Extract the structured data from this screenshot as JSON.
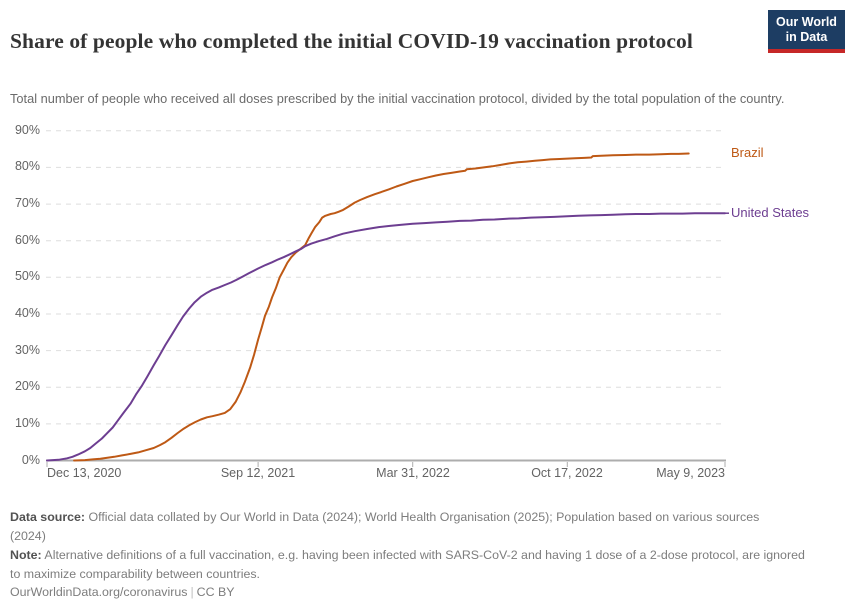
{
  "header": {
    "title": "Share of people who completed the initial COVID-19 vaccination protocol",
    "subtitle": "Total number of people who received all doses prescribed by the initial vaccination protocol, divided by the total population of the country.",
    "logo": {
      "line1": "Our World",
      "line2": "in Data",
      "bg_color": "#1d3d63",
      "accent_color": "#c62828"
    }
  },
  "chart_data": {
    "type": "line",
    "title": "Share of people who completed the initial COVID-19 vaccination protocol",
    "xlabel": "",
    "ylabel": "",
    "grid": "dashed-horizontal",
    "legend_position": "right-of-line-ends",
    "x_axis": {
      "start_date": "2020-12-13",
      "end_date": "2023-05-09",
      "ticks": [
        {
          "label": "Dec 13, 2020",
          "date": "2020-12-13",
          "align": "start"
        },
        {
          "label": "Sep 12, 2021",
          "date": "2021-09-12",
          "align": "center"
        },
        {
          "label": "Mar 31, 2022",
          "date": "2022-03-31",
          "align": "center"
        },
        {
          "label": "Oct 17, 2022",
          "date": "2022-10-17",
          "align": "center"
        },
        {
          "label": "May 9, 2023",
          "date": "2023-05-09",
          "align": "end"
        }
      ]
    },
    "y_axis": {
      "min": 0,
      "max": 90,
      "step": 10,
      "unit": "%"
    },
    "series": [
      {
        "name": "Brazil",
        "color": "#BE5915",
        "points": [
          [
            "2021-01-17",
            0
          ],
          [
            "2021-01-31",
            0.1
          ],
          [
            "2021-02-10",
            0.3
          ],
          [
            "2021-02-20",
            0.5
          ],
          [
            "2021-02-28",
            0.7
          ],
          [
            "2021-03-10",
            1.0
          ],
          [
            "2021-03-20",
            1.4
          ],
          [
            "2021-03-31",
            1.8
          ],
          [
            "2021-04-10",
            2.2
          ],
          [
            "2021-04-20",
            2.8
          ],
          [
            "2021-04-30",
            3.4
          ],
          [
            "2021-05-08",
            4.2
          ],
          [
            "2021-05-15",
            5.0
          ],
          [
            "2021-05-23",
            6.2
          ],
          [
            "2021-05-31",
            7.5
          ],
          [
            "2021-06-08",
            8.7
          ],
          [
            "2021-06-15",
            9.6
          ],
          [
            "2021-06-23",
            10.5
          ],
          [
            "2021-06-30",
            11.2
          ],
          [
            "2021-07-08",
            11.8
          ],
          [
            "2021-07-15",
            12.1
          ],
          [
            "2021-07-23",
            12.5
          ],
          [
            "2021-07-31",
            13.0
          ],
          [
            "2021-08-07",
            14.0
          ],
          [
            "2021-08-14",
            16.0
          ],
          [
            "2021-08-20",
            18.5
          ],
          [
            "2021-08-26",
            21.5
          ],
          [
            "2021-09-02",
            25.5
          ],
          [
            "2021-09-07",
            29.0
          ],
          [
            "2021-09-12",
            33.0
          ],
          [
            "2021-09-17",
            36.5
          ],
          [
            "2021-09-21",
            39.5
          ],
          [
            "2021-09-26",
            42.0
          ],
          [
            "2021-09-30",
            44.5
          ],
          [
            "2021-10-05",
            47.0
          ],
          [
            "2021-10-10",
            50.0
          ],
          [
            "2021-10-15",
            52.0
          ],
          [
            "2021-10-20",
            54.0
          ],
          [
            "2021-10-25",
            55.5
          ],
          [
            "2021-10-31",
            56.8
          ],
          [
            "2021-11-06",
            57.8
          ],
          [
            "2021-11-12",
            58.8
          ],
          [
            "2021-11-16",
            60.5
          ],
          [
            "2021-11-20",
            62.0
          ],
          [
            "2021-11-25",
            63.8
          ],
          [
            "2021-11-30",
            65.0
          ],
          [
            "2021-12-04",
            66.3
          ],
          [
            "2021-12-08",
            66.8
          ],
          [
            "2021-12-15",
            67.3
          ],
          [
            "2021-12-20",
            67.5
          ],
          [
            "2021-12-25",
            67.9
          ],
          [
            "2021-12-31",
            68.4
          ],
          [
            "2022-01-07",
            69.3
          ],
          [
            "2022-01-15",
            70.4
          ],
          [
            "2022-01-22",
            71.1
          ],
          [
            "2022-01-31",
            71.9
          ],
          [
            "2022-02-10",
            72.7
          ],
          [
            "2022-02-20",
            73.4
          ],
          [
            "2022-02-28",
            74.0
          ],
          [
            "2022-03-10",
            74.8
          ],
          [
            "2022-03-20",
            75.5
          ],
          [
            "2022-03-31",
            76.3
          ],
          [
            "2022-04-10",
            76.8
          ],
          [
            "2022-04-20",
            77.3
          ],
          [
            "2022-04-30",
            77.8
          ],
          [
            "2022-05-10",
            78.2
          ],
          [
            "2022-05-20",
            78.5
          ],
          [
            "2022-05-31",
            78.9
          ],
          [
            "2022-06-07",
            79.1
          ],
          [
            "2022-06-09",
            79.5
          ],
          [
            "2022-06-20",
            79.7
          ],
          [
            "2022-07-01",
            80.0
          ],
          [
            "2022-07-12",
            80.3
          ],
          [
            "2022-07-23",
            80.7
          ],
          [
            "2022-08-03",
            81.1
          ],
          [
            "2022-08-14",
            81.4
          ],
          [
            "2022-08-25",
            81.6
          ],
          [
            "2022-09-05",
            81.8
          ],
          [
            "2022-09-15",
            82.0
          ],
          [
            "2022-09-25",
            82.2
          ],
          [
            "2022-10-07",
            82.3
          ],
          [
            "2022-10-17",
            82.4
          ],
          [
            "2022-10-27",
            82.5
          ],
          [
            "2022-11-08",
            82.6
          ],
          [
            "2022-11-17",
            82.7
          ],
          [
            "2022-11-19",
            83.1
          ],
          [
            "2022-11-30",
            83.2
          ],
          [
            "2022-12-15",
            83.3
          ],
          [
            "2022-12-31",
            83.4
          ],
          [
            "2023-01-15",
            83.5
          ],
          [
            "2023-01-31",
            83.5
          ],
          [
            "2023-02-15",
            83.6
          ],
          [
            "2023-02-28",
            83.7
          ],
          [
            "2023-03-10",
            83.7
          ],
          [
            "2023-03-23",
            83.8
          ]
        ]
      },
      {
        "name": "United States",
        "color": "#6D3E91",
        "points": [
          [
            "2020-12-13",
            0
          ],
          [
            "2020-12-28",
            0.2
          ],
          [
            "2021-01-08",
            0.6
          ],
          [
            "2021-01-15",
            1.0
          ],
          [
            "2021-01-22",
            1.6
          ],
          [
            "2021-01-31",
            2.5
          ],
          [
            "2021-02-07",
            3.4
          ],
          [
            "2021-02-15",
            4.8
          ],
          [
            "2021-02-22",
            6.0
          ],
          [
            "2021-02-28",
            7.3
          ],
          [
            "2021-03-08",
            9.0
          ],
          [
            "2021-03-15",
            11.0
          ],
          [
            "2021-03-22",
            13.0
          ],
          [
            "2021-03-31",
            15.5
          ],
          [
            "2021-04-07",
            18.0
          ],
          [
            "2021-04-15",
            20.5
          ],
          [
            "2021-04-22",
            23.0
          ],
          [
            "2021-04-30",
            26.0
          ],
          [
            "2021-05-07",
            28.5
          ],
          [
            "2021-05-15",
            31.5
          ],
          [
            "2021-05-23",
            34.2
          ],
          [
            "2021-05-31",
            37.0
          ],
          [
            "2021-06-07",
            39.3
          ],
          [
            "2021-06-15",
            41.5
          ],
          [
            "2021-06-22",
            43.2
          ],
          [
            "2021-06-30",
            44.7
          ],
          [
            "2021-07-08",
            45.8
          ],
          [
            "2021-07-15",
            46.6
          ],
          [
            "2021-07-23",
            47.2
          ],
          [
            "2021-07-31",
            47.9
          ],
          [
            "2021-08-08",
            48.6
          ],
          [
            "2021-08-15",
            49.3
          ],
          [
            "2021-08-23",
            50.2
          ],
          [
            "2021-08-31",
            51.1
          ],
          [
            "2021-09-12",
            52.4
          ],
          [
            "2021-09-22",
            53.4
          ],
          [
            "2021-09-30",
            54.1
          ],
          [
            "2021-10-08",
            54.9
          ],
          [
            "2021-10-15",
            55.5
          ],
          [
            "2021-10-23",
            56.3
          ],
          [
            "2021-10-31",
            57.1
          ],
          [
            "2021-11-07",
            57.8
          ],
          [
            "2021-11-12",
            58.5
          ],
          [
            "2021-11-20",
            59.2
          ],
          [
            "2021-11-30",
            59.9
          ],
          [
            "2021-12-10",
            60.5
          ],
          [
            "2021-12-20",
            61.2
          ],
          [
            "2021-12-31",
            61.9
          ],
          [
            "2022-01-15",
            62.6
          ],
          [
            "2022-01-31",
            63.2
          ],
          [
            "2022-02-15",
            63.7
          ],
          [
            "2022-02-28",
            64.0
          ],
          [
            "2022-03-15",
            64.3
          ],
          [
            "2022-03-31",
            64.6
          ],
          [
            "2022-04-15",
            64.8
          ],
          [
            "2022-04-30",
            65.0
          ],
          [
            "2022-05-15",
            65.2
          ],
          [
            "2022-05-31",
            65.4
          ],
          [
            "2022-06-15",
            65.5
          ],
          [
            "2022-06-30",
            65.7
          ],
          [
            "2022-07-15",
            65.8
          ],
          [
            "2022-07-31",
            66.0
          ],
          [
            "2022-08-15",
            66.1
          ],
          [
            "2022-08-31",
            66.3
          ],
          [
            "2022-09-15",
            66.4
          ],
          [
            "2022-09-30",
            66.5
          ],
          [
            "2022-10-17",
            66.7
          ],
          [
            "2022-10-31",
            66.8
          ],
          [
            "2022-11-15",
            66.9
          ],
          [
            "2022-11-30",
            67.0
          ],
          [
            "2022-12-15",
            67.1
          ],
          [
            "2022-12-31",
            67.2
          ],
          [
            "2023-01-15",
            67.3
          ],
          [
            "2023-01-31",
            67.3
          ],
          [
            "2023-02-15",
            67.4
          ],
          [
            "2023-02-28",
            67.4
          ],
          [
            "2023-03-15",
            67.4
          ],
          [
            "2023-03-31",
            67.5
          ],
          [
            "2023-04-15",
            67.5
          ],
          [
            "2023-05-09",
            67.5
          ]
        ]
      }
    ]
  },
  "footer": {
    "data_source_label": "Data source:",
    "data_source_text": " Official data collated by Our World in Data (2024); World Health Organisation (2025); Population based on various sources (2024)",
    "note_label": "Note:",
    "note_text": " Alternative definitions of a full vaccination, e.g. having been infected with SARS-CoV-2 and having 1 dose of a 2-dose protocol, are ignored to maximize comparability between countries.",
    "url": "OurWorldinData.org/coronavirus",
    "separator": "|",
    "license": "CC BY"
  }
}
